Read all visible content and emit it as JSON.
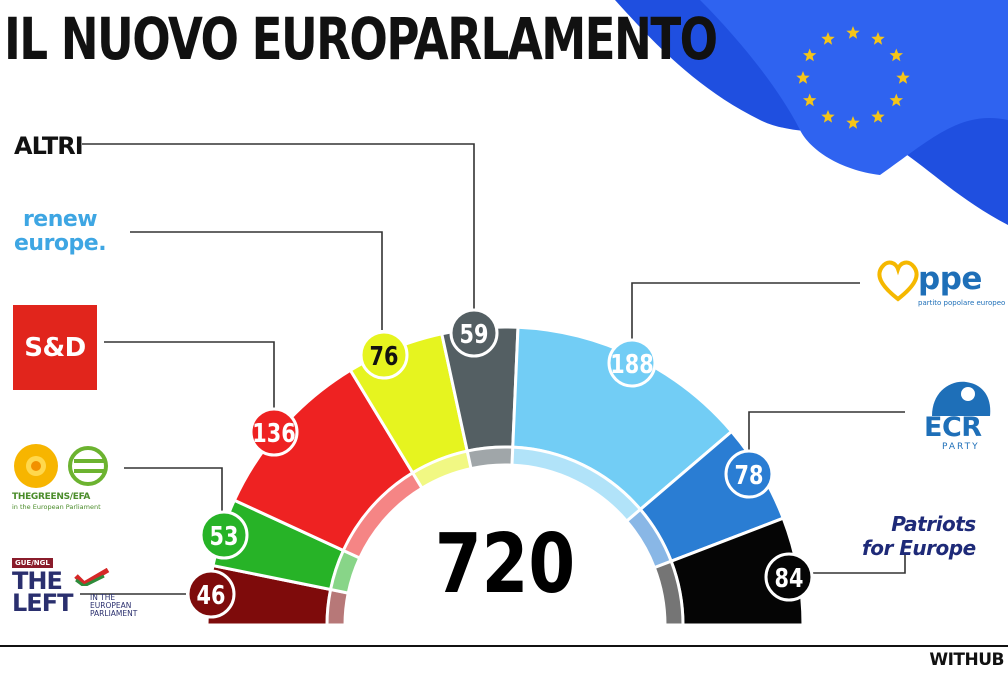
{
  "title": "IL NUOVO EUROPARLAMENTO",
  "watermark": "WITHUB",
  "logos": {
    "altri": "ALTRI",
    "renew_line1": "renew",
    "renew_line2": "europe.",
    "sd": "S&D",
    "greens_name": "THEGREENS/EFA",
    "greens_sub": "in the European Parliament",
    "left_tag": "GUE/NGL",
    "left_word1": "THE",
    "left_word2": "LEFT",
    "left_sub1": "IN THE",
    "left_sub2": "EUROPEAN",
    "left_sub3": "PARLIAMENT",
    "ppe": "ppe",
    "ppe_sub": "partito popolare europeo",
    "ecr": "ECR",
    "ecr_sub": "PARTY",
    "patriots_line1": "Patriots",
    "patriots_line2": "for Europe"
  },
  "chart_data": {
    "type": "pie",
    "subtype": "parliament-hemicycle",
    "total": 720,
    "slices": [
      {
        "value": 46,
        "color": "#7e0b0b"
      },
      {
        "value": 53,
        "color": "#27b327"
      },
      {
        "value": 136,
        "color": "#ee2222"
      },
      {
        "value": 76,
        "color": "#e6f41f"
      },
      {
        "value": 59,
        "color": "#545f63"
      },
      {
        "value": 188,
        "color": "#72cdf5"
      },
      {
        "value": 78,
        "color": "#2a7dd3"
      },
      {
        "value": 84,
        "color": "#050505"
      }
    ],
    "labels": [
      "THE LEFT",
      "Greens/EFA",
      "S&D",
      "Renew Europe",
      "ALTRI",
      "PPE",
      "ECR",
      "Patriots for Europe"
    ]
  },
  "colors": {
    "flag_blue": "#1f4fe0",
    "star_gold": "#f5c518",
    "line": "#333333"
  }
}
